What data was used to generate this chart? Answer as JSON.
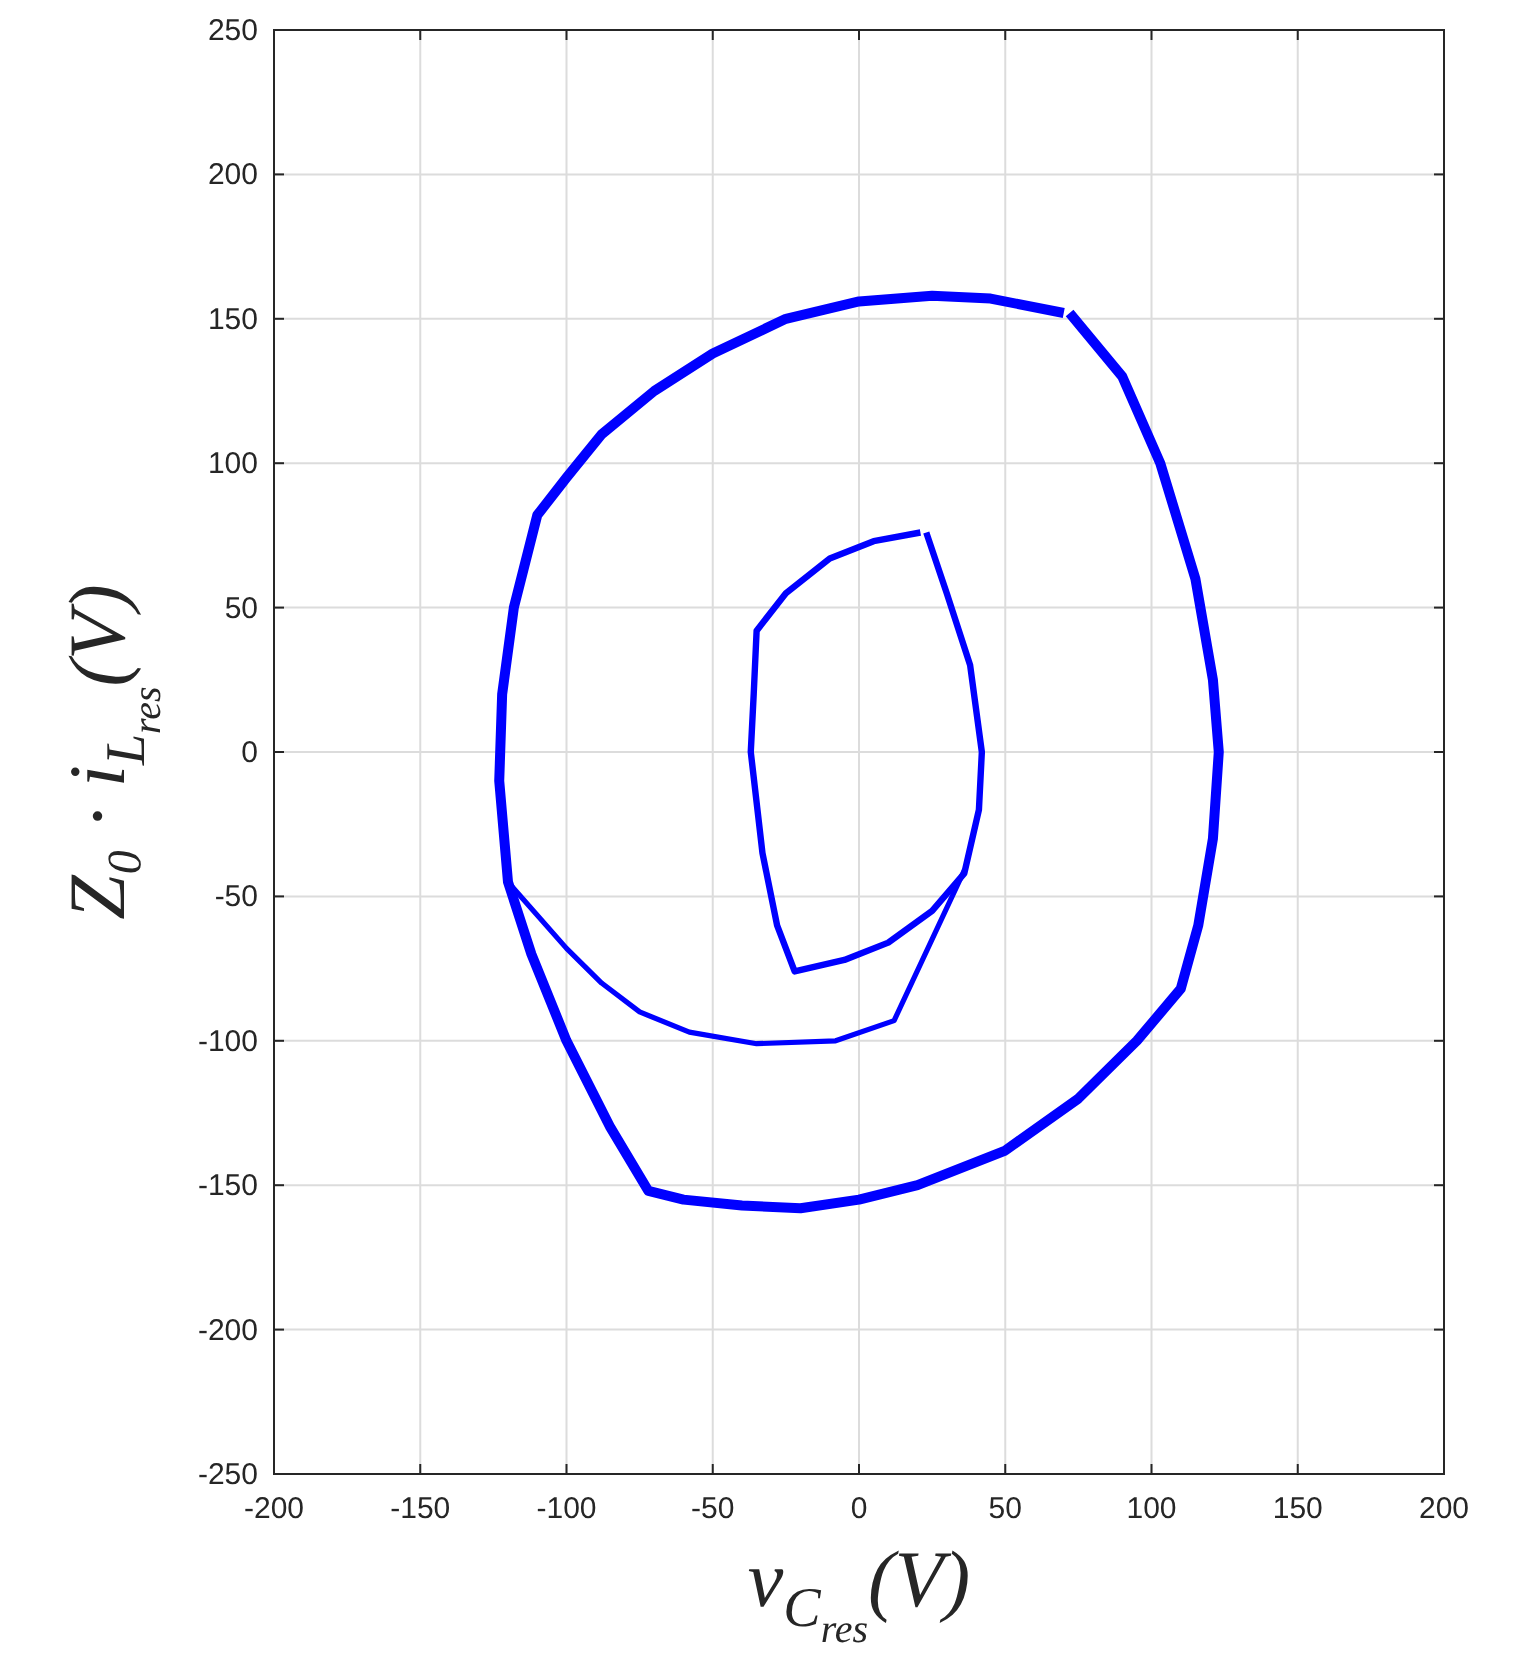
{
  "chart_data": {
    "type": "line",
    "xlabel": "v$_{C}$$_{res}$(V)",
    "ylabel": "Z₀ · i$_{L}$$_{res}$(V)",
    "xlim": [
      -200,
      200
    ],
    "xticks": [
      -200,
      -150,
      -100,
      -50,
      0,
      50,
      100,
      150,
      200
    ],
    "ylim": [
      -250,
      250
    ],
    "yticks": [
      -250,
      -200,
      -150,
      -100,
      -50,
      0,
      50,
      100,
      150,
      200,
      250
    ],
    "grid": true,
    "marker": "none",
    "line_style": "solid",
    "series": [
      {
        "color": "#0000ff",
        "x": [
          72,
          90,
          103,
          115,
          121,
          123,
          121,
          116,
          110,
          95,
          75,
          50,
          20,
          0,
          -20,
          -40,
          -60,
          -72,
          -85,
          -100,
          -112,
          -120,
          -123,
          -122,
          -118,
          -110,
          -100,
          -88,
          -70,
          -50,
          -25,
          0,
          25,
          45,
          70
        ],
        "values": [
          152,
          130,
          100,
          60,
          25,
          0,
          -30,
          -60,
          -82,
          -100,
          -120,
          -138,
          -150,
          -155,
          -158,
          -157,
          -155,
          -152,
          -130,
          -100,
          -70,
          -45,
          -10,
          20,
          50,
          82,
          95,
          110,
          125,
          138,
          150,
          156,
          158,
          157,
          152
        ]
      },
      {
        "color": "#0000ff",
        "x": [
          23,
          30,
          38,
          42,
          41,
          36,
          25,
          10,
          -5,
          -22,
          -28,
          -33,
          -37,
          -36,
          -35,
          -25,
          -10,
          5,
          21
        ],
        "values": [
          76,
          55,
          30,
          0,
          -20,
          -42,
          -55,
          -66,
          -72,
          -76,
          -60,
          -35,
          0,
          20,
          42,
          55,
          67,
          73,
          76
        ]
      },
      {
        "color": "#0000ff",
        "x": [
          -120,
          -100,
          -88,
          -75,
          -58,
          -35,
          -8,
          12,
          36
        ],
        "values": [
          -45,
          -68,
          -80,
          -90,
          -97,
          -101,
          -100,
          -93,
          -41
        ]
      }
    ]
  }
}
